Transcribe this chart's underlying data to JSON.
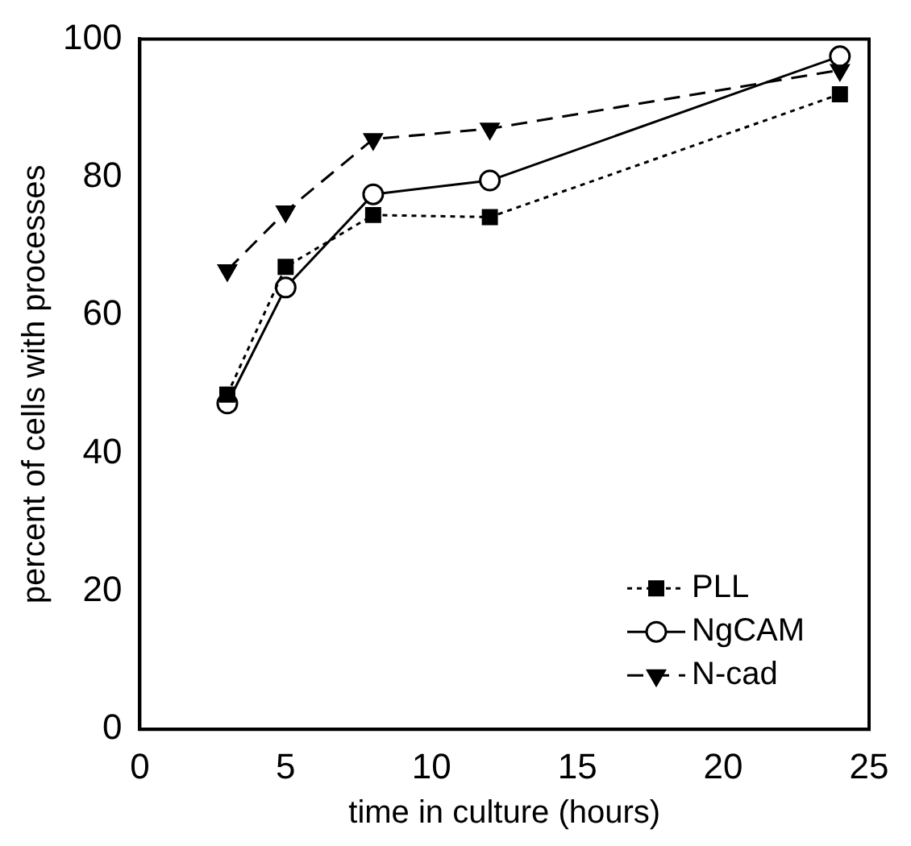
{
  "chart_data": {
    "type": "line",
    "xlabel": "time in culture (hours)",
    "ylabel": "percent of cells with processes",
    "x": [
      3,
      5,
      8,
      12,
      24
    ],
    "series": [
      {
        "name": "PLL",
        "color": "#000000",
        "values": [
          48.5,
          67,
          74.5,
          74.2,
          92
        ],
        "marker": "square",
        "line_style": "dotted"
      },
      {
        "name": "NgCAM",
        "color": "#000000",
        "values": [
          47.2,
          64,
          77.5,
          79.5,
          97.5
        ],
        "marker": "circle",
        "line_style": "solid"
      },
      {
        "name": "N-cad",
        "color": "#000000",
        "values": [
          66.5,
          75,
          85.5,
          87,
          95.5
        ],
        "marker": "triangle",
        "line_style": "dashed"
      }
    ],
    "xlim": [
      0,
      25
    ],
    "xticks": [
      0,
      5,
      10,
      15,
      20,
      25
    ],
    "ylim": [
      0,
      100
    ],
    "yticks": [
      0,
      20,
      40,
      60,
      80,
      100
    ],
    "grid": false,
    "legend": "bottom right"
  }
}
